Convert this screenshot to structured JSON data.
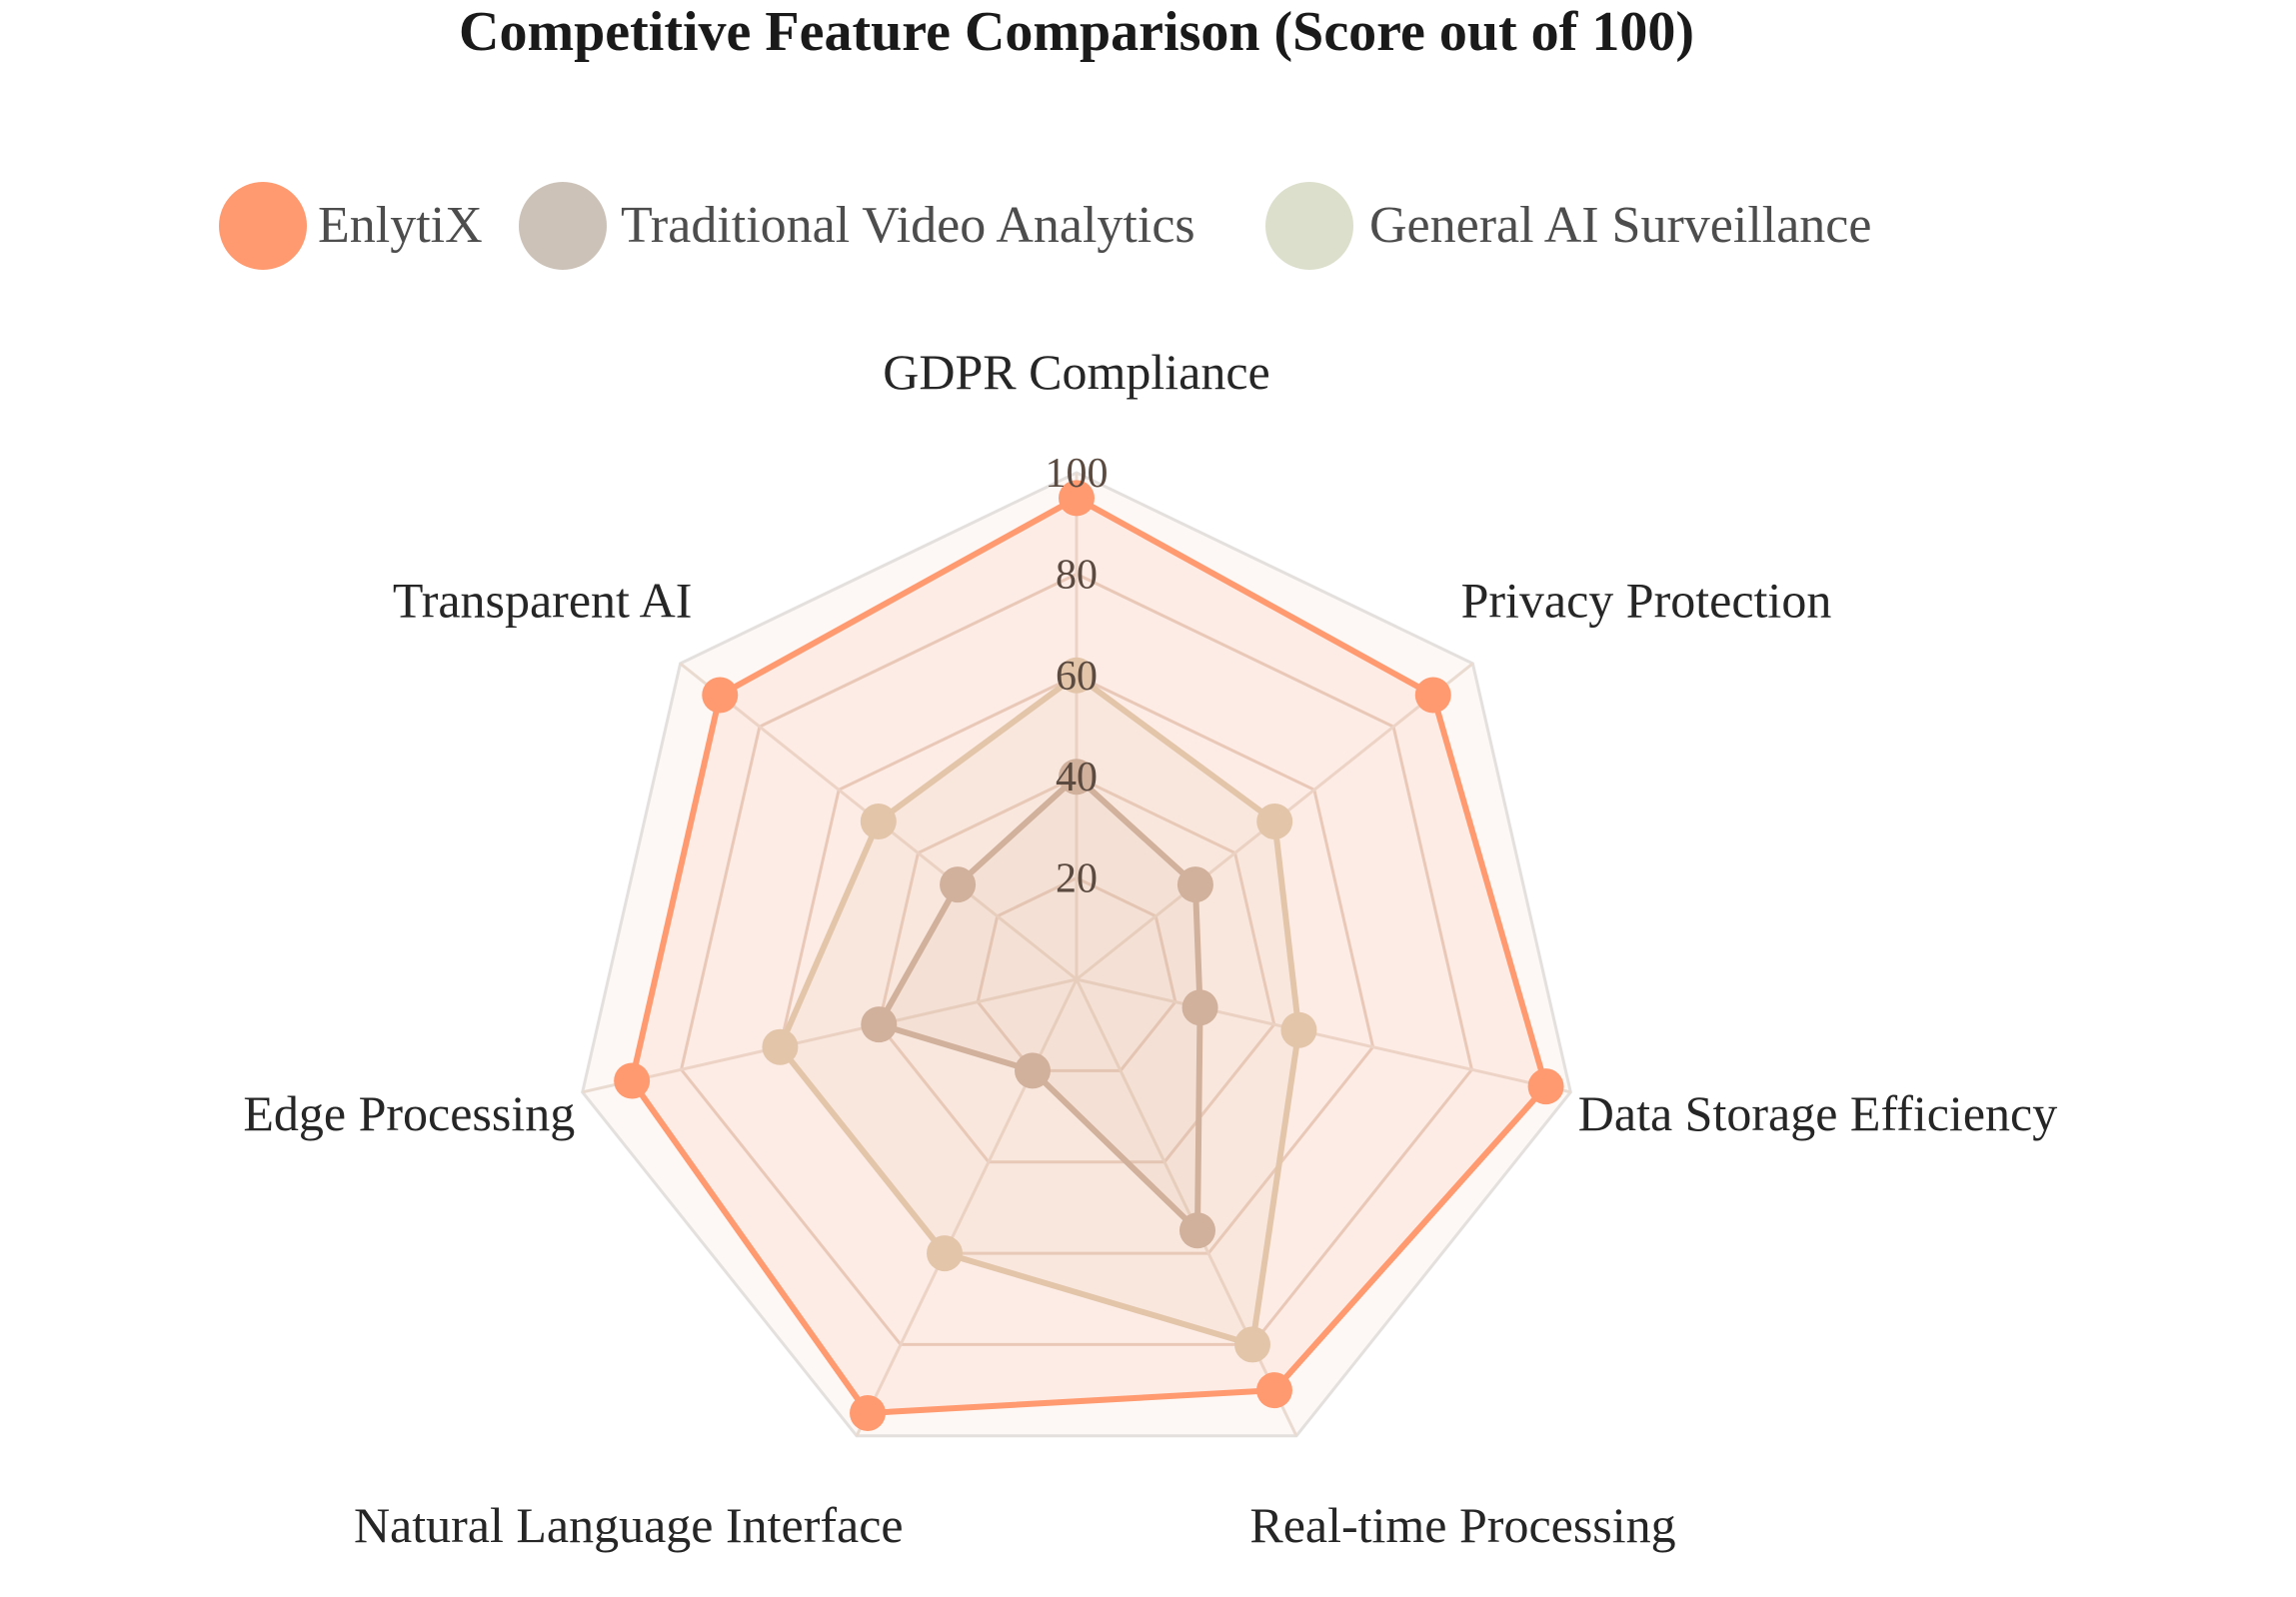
{
  "chart_data": {
    "type": "radar",
    "title": "Competitive Feature Comparison (Score out of 100)",
    "axes": [
      "GDPR Compliance",
      "Privacy Protection",
      "Data Storage Efficiency",
      "Real-time Processing",
      "Natural Language Interface",
      "Edge Processing",
      "Transparent AI"
    ],
    "r_range": [
      0,
      100
    ],
    "r_ticks": [
      "20",
      "40",
      "60",
      "80",
      "100"
    ],
    "r_tick_values": [
      20,
      40,
      60,
      80,
      100
    ],
    "legend_position": "top",
    "series": [
      {
        "name": "Traditional Video Analytics",
        "values": [
          40,
          30,
          25,
          55,
          20,
          40,
          30
        ],
        "color": "#c9b0a0"
      },
      {
        "name": "General AI Surveillance",
        "values": [
          60,
          50,
          45,
          80,
          60,
          60,
          50
        ],
        "color": "#e0cbb2"
      },
      {
        "name": "EnlytiX",
        "values": [
          95,
          90,
          95,
          90,
          95,
          90,
          90
        ],
        "color": "#ff9a70"
      }
    ],
    "legend": [
      {
        "name": "EnlytiX",
        "color": "#ff9a70"
      },
      {
        "name": "Traditional Video Analytics",
        "color": "#ccc2b8"
      },
      {
        "name": "General AI Surveillance",
        "color": "#dcdfcc"
      }
    ]
  }
}
